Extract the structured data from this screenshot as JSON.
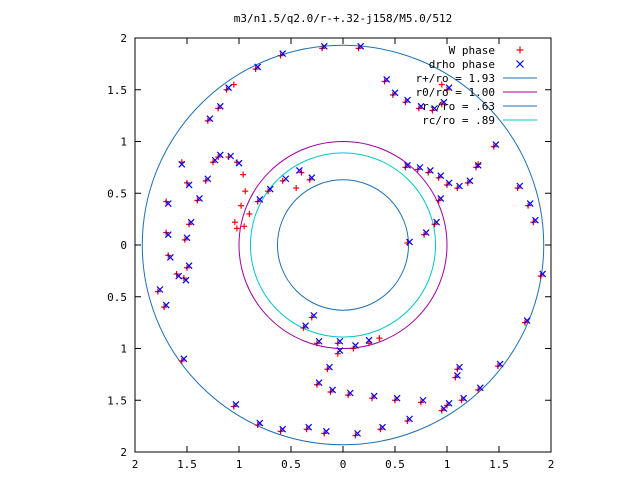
{
  "chart_data": {
    "type": "scatter",
    "title": "m3/n1.5/q2.0/r-+.32-j158/M5.0/512",
    "xlim": [
      -2,
      2
    ],
    "ylim": [
      -2,
      2
    ],
    "x_tick_values": [
      -2,
      -1.5,
      -1,
      -0.5,
      0,
      0.5,
      1,
      1.5,
      2
    ],
    "x_tick_labels": [
      "2",
      "1.5",
      "1",
      "0.5",
      "0",
      "0.5",
      "1",
      "1.5",
      "2"
    ],
    "y_tick_values": [
      2,
      1.5,
      1,
      0.5,
      0,
      -0.5,
      -1,
      -1.5,
      -2
    ],
    "y_tick_labels": [
      "2",
      "1.5",
      "1",
      "0.5",
      "0",
      "0.5",
      "1",
      "1.5",
      "2"
    ],
    "grid": false,
    "legend_position": "top-right",
    "legend": [
      {
        "label": "W phase",
        "kind": "point",
        "marker": "plus",
        "color": "#ff0000"
      },
      {
        "label": "drho phase",
        "kind": "point",
        "marker": "cross",
        "color": "#0000ff"
      },
      {
        "label": "r+/ro = 1.93",
        "kind": "circle",
        "radius": 1.93,
        "color": "#1f6fb3"
      },
      {
        "label": "r0/ro = 1.00",
        "kind": "circle",
        "radius": 1.0,
        "color": "#a000a0"
      },
      {
        "label": "r-/ro = .63",
        "kind": "circle",
        "radius": 0.63,
        "color": "#1f6fb3"
      },
      {
        "label": "rc/ro = .89",
        "kind": "circle",
        "radius": 0.89,
        "color": "#00c8c8"
      }
    ],
    "series": [
      {
        "name": "W phase",
        "color": "#ff0000",
        "points": [
          [
            -1.55,
            0.8
          ],
          [
            -1.5,
            0.6
          ],
          [
            -1.7,
            0.42
          ],
          [
            -1.7,
            0.12
          ],
          [
            -1.68,
            -0.1
          ],
          [
            -1.6,
            -0.28
          ],
          [
            -1.53,
            -0.32
          ],
          [
            -1.5,
            -0.22
          ],
          [
            -1.52,
            0.05
          ],
          [
            -1.48,
            0.2
          ],
          [
            -1.4,
            0.43
          ],
          [
            -1.32,
            0.62
          ],
          [
            -1.25,
            0.8
          ],
          [
            -1.2,
            0.85
          ],
          [
            -1.1,
            0.85
          ],
          [
            -1.02,
            0.8
          ],
          [
            -0.96,
            0.68
          ],
          [
            -0.94,
            0.52
          ],
          [
            -0.98,
            0.38
          ],
          [
            -1.04,
            0.22
          ],
          [
            -1.02,
            0.16
          ],
          [
            -0.95,
            0.18
          ],
          [
            -0.9,
            0.3
          ],
          [
            -0.82,
            0.42
          ],
          [
            -0.72,
            0.52
          ],
          [
            -0.58,
            0.62
          ],
          [
            -0.4,
            0.7
          ],
          [
            -0.32,
            0.63
          ],
          [
            -0.45,
            0.55
          ],
          [
            -1.3,
            1.2
          ],
          [
            -1.2,
            1.32
          ],
          [
            -1.12,
            1.5
          ],
          [
            -1.05,
            1.55
          ],
          [
            -0.84,
            1.7
          ],
          [
            -0.6,
            1.83
          ],
          [
            -0.2,
            1.9
          ],
          [
            0.15,
            1.9
          ],
          [
            0.4,
            1.58
          ],
          [
            0.48,
            1.45
          ],
          [
            0.6,
            1.38
          ],
          [
            0.73,
            1.32
          ],
          [
            0.86,
            1.3
          ],
          [
            0.95,
            1.36
          ],
          [
            1.0,
            1.5
          ],
          [
            0.95,
            1.55
          ],
          [
            0.6,
            0.75
          ],
          [
            0.72,
            0.73
          ],
          [
            0.82,
            0.7
          ],
          [
            0.92,
            0.65
          ],
          [
            1.0,
            0.58
          ],
          [
            1.1,
            0.55
          ],
          [
            1.2,
            0.6
          ],
          [
            1.28,
            0.75
          ],
          [
            1.3,
            0.78
          ],
          [
            0.92,
            0.43
          ],
          [
            0.88,
            0.2
          ],
          [
            0.78,
            0.1
          ],
          [
            0.62,
            0.02
          ],
          [
            1.45,
            0.95
          ],
          [
            1.68,
            0.55
          ],
          [
            1.78,
            0.38
          ],
          [
            1.83,
            0.22
          ],
          [
            1.9,
            -0.3
          ],
          [
            1.75,
            -0.75
          ],
          [
            1.49,
            -1.17
          ],
          [
            1.3,
            -1.4
          ],
          [
            1.14,
            -1.5
          ],
          [
            0.95,
            -1.6
          ],
          [
            0.62,
            -1.7
          ],
          [
            0.36,
            -1.78
          ],
          [
            0.12,
            -1.84
          ],
          [
            0.35,
            -0.9
          ],
          [
            0.25,
            -0.95
          ],
          [
            0.1,
            -1.0
          ],
          [
            -0.05,
            -1.05
          ],
          [
            -0.15,
            -1.2
          ],
          [
            -0.25,
            -1.35
          ],
          [
            -0.12,
            -1.42
          ],
          [
            0.05,
            -1.45
          ],
          [
            0.28,
            -1.48
          ],
          [
            0.5,
            -1.5
          ],
          [
            0.75,
            -1.52
          ],
          [
            1.0,
            -1.55
          ],
          [
            1.08,
            -1.28
          ],
          [
            1.1,
            -1.2
          ],
          [
            -0.3,
            -0.7
          ],
          [
            -0.38,
            -0.8
          ],
          [
            -0.25,
            -0.95
          ],
          [
            -0.05,
            -0.95
          ],
          [
            -1.78,
            -0.45
          ],
          [
            -1.72,
            -0.6
          ],
          [
            -1.55,
            -1.12
          ],
          [
            -1.05,
            -1.56
          ],
          [
            -0.82,
            -1.74
          ],
          [
            -0.6,
            -1.8
          ],
          [
            -0.35,
            -1.78
          ],
          [
            -0.18,
            -1.82
          ]
        ]
      },
      {
        "name": "drho phase",
        "color": "#0000ff",
        "points": [
          [
            -1.55,
            0.78
          ],
          [
            -1.48,
            0.58
          ],
          [
            -1.68,
            0.4
          ],
          [
            -1.68,
            0.1
          ],
          [
            -1.66,
            -0.12
          ],
          [
            -1.58,
            -0.3
          ],
          [
            -1.51,
            -0.34
          ],
          [
            -1.48,
            -0.2
          ],
          [
            -1.5,
            0.07
          ],
          [
            -1.46,
            0.22
          ],
          [
            -1.38,
            0.45
          ],
          [
            -1.3,
            0.64
          ],
          [
            -1.23,
            0.82
          ],
          [
            -1.18,
            0.87
          ],
          [
            -1.08,
            0.86
          ],
          [
            -1.0,
            0.79
          ],
          [
            -0.8,
            0.44
          ],
          [
            -0.7,
            0.54
          ],
          [
            -0.55,
            0.64
          ],
          [
            -0.42,
            0.72
          ],
          [
            -0.3,
            0.65
          ],
          [
            -1.28,
            1.22
          ],
          [
            -1.18,
            1.34
          ],
          [
            -1.1,
            1.52
          ],
          [
            -0.82,
            1.72
          ],
          [
            -0.58,
            1.85
          ],
          [
            -0.18,
            1.92
          ],
          [
            0.17,
            1.92
          ],
          [
            0.42,
            1.6
          ],
          [
            0.5,
            1.47
          ],
          [
            0.62,
            1.4
          ],
          [
            0.75,
            1.34
          ],
          [
            0.88,
            1.32
          ],
          [
            0.97,
            1.38
          ],
          [
            1.02,
            1.52
          ],
          [
            0.62,
            0.77
          ],
          [
            0.74,
            0.75
          ],
          [
            0.84,
            0.72
          ],
          [
            0.94,
            0.67
          ],
          [
            1.02,
            0.6
          ],
          [
            1.12,
            0.57
          ],
          [
            1.22,
            0.62
          ],
          [
            1.3,
            0.77
          ],
          [
            0.94,
            0.45
          ],
          [
            0.9,
            0.22
          ],
          [
            0.8,
            0.12
          ],
          [
            0.64,
            0.03
          ],
          [
            1.47,
            0.97
          ],
          [
            1.7,
            0.57
          ],
          [
            1.8,
            0.4
          ],
          [
            1.85,
            0.24
          ],
          [
            1.92,
            -0.28
          ],
          [
            1.77,
            -0.73
          ],
          [
            1.51,
            -1.15
          ],
          [
            1.32,
            -1.38
          ],
          [
            1.16,
            -1.48
          ],
          [
            0.97,
            -1.58
          ],
          [
            0.64,
            -1.68
          ],
          [
            0.38,
            -1.76
          ],
          [
            0.14,
            -1.82
          ],
          [
            0.25,
            -0.92
          ],
          [
            0.12,
            -0.97
          ],
          [
            -0.03,
            -1.02
          ],
          [
            -0.13,
            -1.18
          ],
          [
            -0.23,
            -1.33
          ],
          [
            -0.1,
            -1.4
          ],
          [
            0.07,
            -1.43
          ],
          [
            0.3,
            -1.46
          ],
          [
            0.52,
            -1.48
          ],
          [
            0.77,
            -1.5
          ],
          [
            1.02,
            -1.53
          ],
          [
            1.1,
            -1.26
          ],
          [
            1.12,
            -1.18
          ],
          [
            -0.28,
            -0.68
          ],
          [
            -0.36,
            -0.78
          ],
          [
            -0.23,
            -0.93
          ],
          [
            -0.03,
            -0.93
          ],
          [
            -1.76,
            -0.43
          ],
          [
            -1.7,
            -0.58
          ],
          [
            -1.53,
            -1.1
          ],
          [
            -1.03,
            -1.54
          ],
          [
            -0.8,
            -1.72
          ],
          [
            -0.58,
            -1.78
          ],
          [
            -0.33,
            -1.76
          ],
          [
            -0.16,
            -1.8
          ]
        ]
      }
    ]
  }
}
